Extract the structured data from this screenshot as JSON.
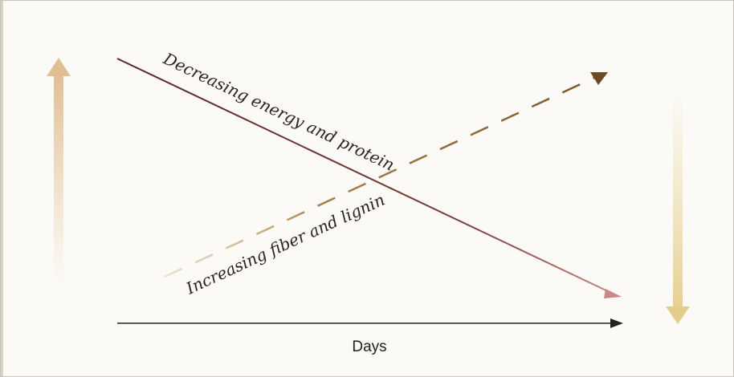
{
  "diagram": {
    "axis_label": "Days",
    "line_labels": {
      "decreasing": "Decreasing energy and protein",
      "increasing": "Increasing fiber and lignin"
    },
    "colors": {
      "background": "#fbfaf6",
      "border": "#c9c4ba",
      "decreasing_line": "#6e3a36",
      "decreasing_arrowhead": "#c98a86",
      "increasing_line": "#8a6434",
      "up_arrow": "#e2c29a",
      "down_arrow": "#e6d08f",
      "axis": "#222222"
    }
  }
}
